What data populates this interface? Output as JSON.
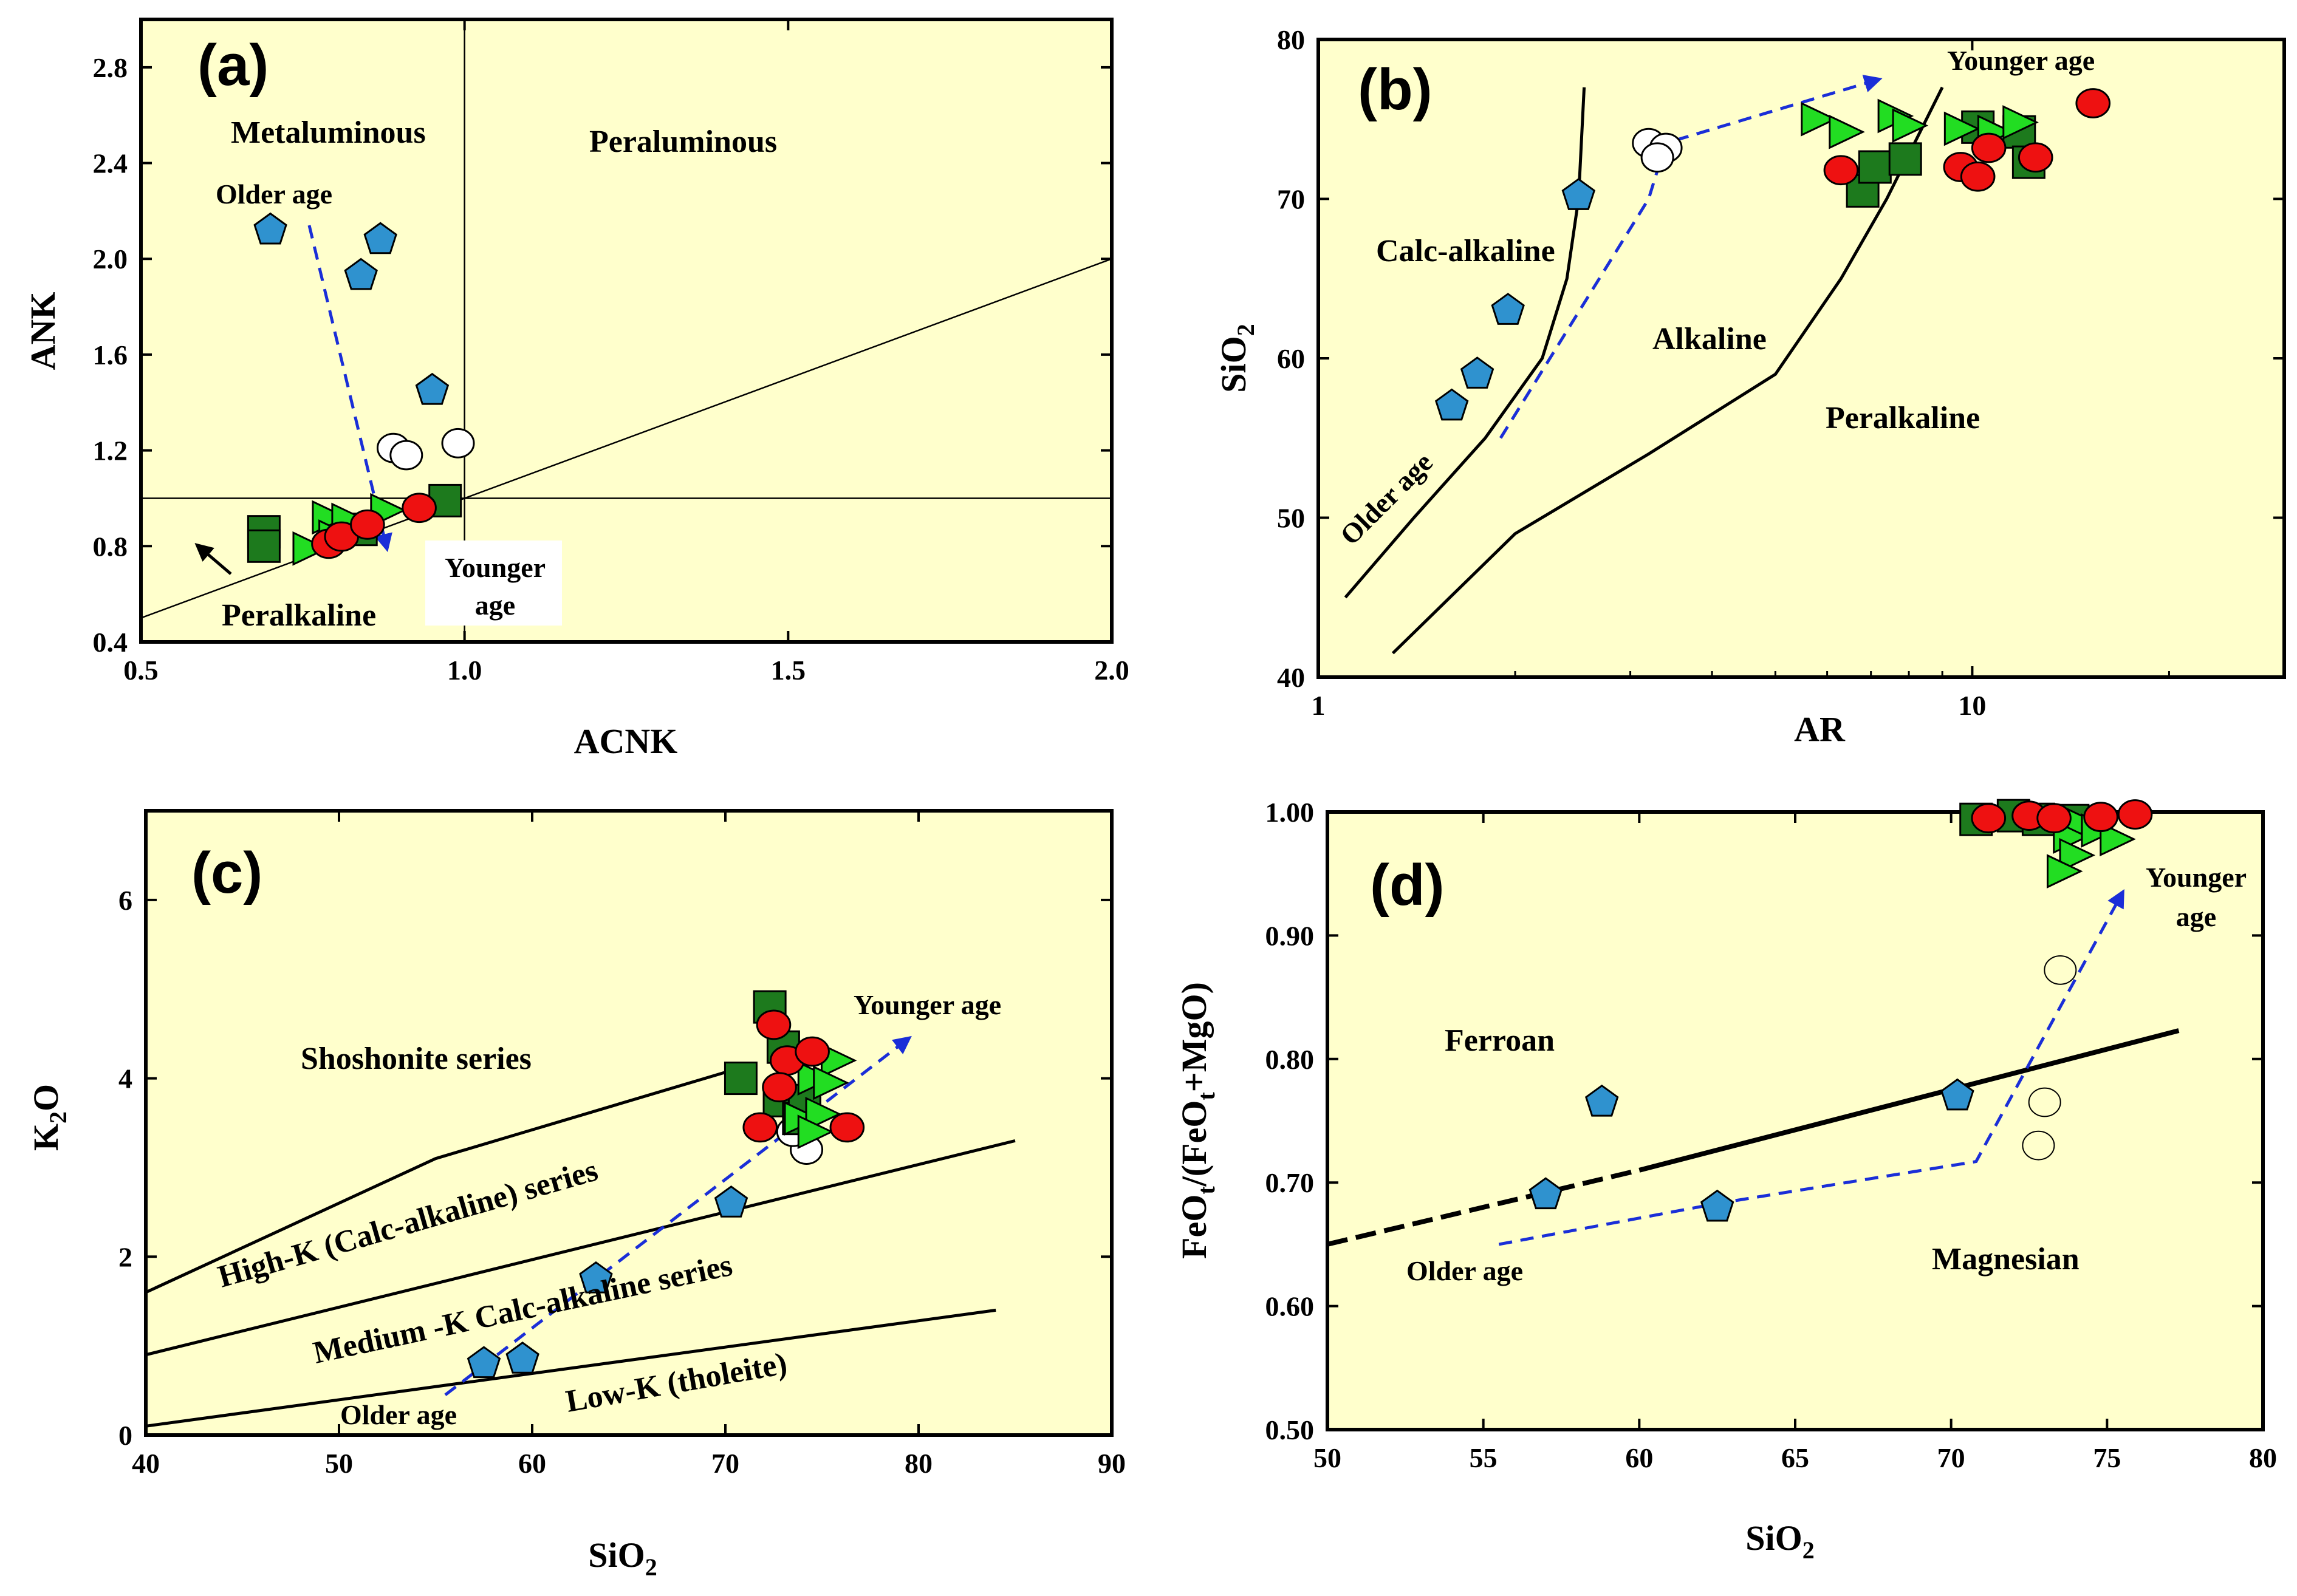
{
  "chart_data": [
    {
      "panel": "(a)",
      "type": "scatter",
      "xlabel": "ACNK",
      "ylabel": "ANK",
      "xlim": [
        0.5,
        2.0
      ],
      "ylim": [
        0.4,
        3.0
      ],
      "xticks": [
        "0.5",
        "1.0",
        "1.5",
        "2.0"
      ],
      "yticks": [
        "0.4",
        "0.8",
        "1.2",
        "1.6",
        "2.0",
        "2.4",
        "2.8"
      ],
      "fields": [
        "Metaluminous",
        "Peraluminous",
        "Peralkaline"
      ],
      "boundaries": [
        {
          "name": "ACNK=1",
          "x": [
            1.0,
            1.0
          ],
          "y": [
            0.4,
            3.0
          ]
        },
        {
          "name": "ANK=1",
          "x": [
            0.5,
            2.0
          ],
          "y": [
            1.0,
            1.0
          ]
        },
        {
          "name": "ACNK=ANK",
          "x": [
            0.5,
            2.0
          ],
          "y": [
            0.5,
            2.0
          ]
        }
      ],
      "annotations": [
        {
          "text": "Older age",
          "x": 0.73,
          "y": 2.27
        },
        {
          "text": "Younger",
          "x": 1.05,
          "y": 0.74
        },
        {
          "text": "age",
          "x": 1.05,
          "y": 0.57
        }
      ],
      "trend": {
        "x": [
          0.76,
          0.88
        ],
        "y": [
          2.14,
          0.79
        ]
      },
      "series": [
        {
          "name": "pentagon",
          "x": [
            0.7,
            0.87,
            0.84,
            0.95
          ],
          "y": [
            2.12,
            2.08,
            1.93,
            1.45
          ]
        },
        {
          "name": "open-circle",
          "x": [
            0.89,
            0.91,
            0.99
          ],
          "y": [
            1.21,
            1.18,
            1.23
          ]
        },
        {
          "name": "square",
          "x": [
            0.69,
            0.69,
            0.84,
            0.97
          ],
          "y": [
            0.86,
            0.8,
            0.87,
            0.99
          ]
        },
        {
          "name": "triangle",
          "x": [
            0.76,
            0.79,
            0.82,
            0.8,
            0.88
          ],
          "y": [
            0.79,
            0.92,
            0.91,
            0.84,
            0.95
          ]
        },
        {
          "name": "red-circle",
          "x": [
            0.79,
            0.81,
            0.85,
            0.93
          ],
          "y": [
            0.81,
            0.84,
            0.89,
            0.96
          ]
        }
      ]
    },
    {
      "panel": "(b)",
      "type": "scatter",
      "xscale": "log",
      "xlabel": "AR",
      "ylabel": "SiO2",
      "xlim": [
        1,
        30
      ],
      "ylim": [
        40,
        80
      ],
      "xticks": [
        "1",
        "10"
      ],
      "yticks": [
        "40",
        "50",
        "60",
        "70",
        "80"
      ],
      "fields": [
        "Calc-alkaline",
        "Alkaline",
        "Peralkaline"
      ],
      "boundaries": [
        {
          "name": "calc-alkaline/alkaline",
          "x": [
            1.1,
            1.4,
            1.8,
            2.2,
            2.4,
            2.5,
            2.55
          ],
          "y": [
            45,
            50,
            55,
            60,
            65,
            70,
            77
          ]
        },
        {
          "name": "alkaline/peralkaline",
          "x": [
            1.3,
            2.0,
            3.2,
            5.0,
            6.3,
            7.4,
            9.0
          ],
          "y": [
            41.5,
            49,
            54,
            59,
            65,
            70,
            77
          ]
        }
      ],
      "annotations": [
        {
          "text": "Older age",
          "x": 1.28,
          "y": 52.5
        },
        {
          "text": "Younger age",
          "x": 10.0,
          "y": 78.5
        }
      ],
      "trend": {
        "x": [
          1.9,
          3.2,
          3.4,
          7.2
        ],
        "y": [
          55,
          70,
          73.5,
          77.5
        ]
      },
      "series": [
        {
          "name": "pentagon",
          "x": [
            1.6,
            1.75,
            1.95,
            2.5
          ],
          "y": [
            57,
            59,
            63,
            70.2
          ]
        },
        {
          "name": "open-circle",
          "x": [
            3.2,
            3.4,
            3.3
          ],
          "y": [
            73.5,
            73.2,
            72.6
          ]
        },
        {
          "name": "square",
          "x": [
            6.8,
            7.1,
            7.9,
            10.2,
            11.8,
            12.2
          ],
          "y": [
            70.5,
            72,
            72.5,
            74.5,
            74.2,
            72.3
          ]
        },
        {
          "name": "triangle",
          "x": [
            5.8,
            6.4,
            7.6,
            8.0,
            9.6,
            10.8,
            11.8
          ],
          "y": [
            75,
            74.2,
            75.2,
            74.6,
            74.4,
            74.2,
            74.8
          ]
        },
        {
          "name": "red-circle",
          "x": [
            6.3,
            9.6,
            10.6,
            10.2,
            12.5,
            15.3
          ],
          "y": [
            71.8,
            72,
            73.2,
            71.4,
            72.6,
            76
          ]
        }
      ]
    },
    {
      "panel": "(c)",
      "type": "scatter",
      "xlabel": "SiO2",
      "ylabel": "K2O",
      "xlim": [
        40,
        90
      ],
      "ylim": [
        0,
        7
      ],
      "xticks": [
        "40",
        "50",
        "60",
        "70",
        "80",
        "90"
      ],
      "yticks": [
        "0",
        "2",
        "4",
        "6"
      ],
      "fields": [
        "Shoshonite series",
        "High-K (Calc-alkaline) series",
        "Medium -K Calc-alkaline series",
        "Low-K (tholeite)"
      ],
      "boundaries": [
        {
          "name": "shoshonite/high-K",
          "x": [
            40,
            55,
            70.5
          ],
          "y": [
            1.6,
            3.1,
            4.1
          ]
        },
        {
          "name": "high-K/medium-K",
          "x": [
            40,
            85
          ],
          "y": [
            0.9,
            3.3
          ]
        },
        {
          "name": "medium-K/low-K",
          "x": [
            40,
            84
          ],
          "y": [
            0.1,
            1.4
          ]
        }
      ],
      "annotations": [
        {
          "text": "Older age",
          "x": 55,
          "y": 0.18
        },
        {
          "text": "Younger age",
          "x": 81,
          "y": 4.8
        }
      ],
      "trend": {
        "x": [
          55.5,
          79.5
        ],
        "y": [
          0.45,
          4.45
        ]
      },
      "series": [
        {
          "name": "pentagon",
          "x": [
            57.5,
            59.5,
            63.3,
            70.3
          ],
          "y": [
            0.8,
            0.85,
            1.75,
            2.6
          ]
        },
        {
          "name": "open-circle",
          "x": [
            73.8,
            74.2,
            73.5
          ],
          "y": [
            3.7,
            3.2,
            3.4
          ]
        },
        {
          "name": "square",
          "x": [
            72.3,
            73.0,
            70.8,
            72.8,
            73.8,
            74.1
          ],
          "y": [
            4.8,
            4.35,
            4.0,
            3.75,
            3.55,
            3.75
          ]
        },
        {
          "name": "triangle",
          "x": [
            75.8,
            74.6,
            75.4,
            73.9,
            75.0,
            74.6
          ],
          "y": [
            4.2,
            4.0,
            3.95,
            3.55,
            3.6,
            3.4
          ]
        },
        {
          "name": "red-circle",
          "x": [
            72.5,
            73.2,
            74.5,
            72.8,
            71.8,
            76.3
          ],
          "y": [
            4.6,
            4.2,
            4.3,
            3.9,
            3.45,
            3.45
          ]
        }
      ]
    },
    {
      "panel": "(d)",
      "type": "scatter",
      "xlabel": "SiO2",
      "ylabel": "FeOt/(FeOt+MgO)",
      "xlim": [
        50,
        80
      ],
      "ylim": [
        0.5,
        1.0
      ],
      "xticks": [
        "50",
        "55",
        "60",
        "65",
        "70",
        "75",
        "80"
      ],
      "yticks": [
        "0.50",
        "0.60",
        "0.70",
        "0.80",
        "0.90",
        "1.00"
      ],
      "fields": [
        "Ferroan",
        "Magnesian"
      ],
      "boundaries": [
        {
          "name": "ferroan/magnesian (dashed)",
          "x": [
            50,
            60
          ],
          "y": [
            0.65,
            0.71
          ]
        },
        {
          "name": "ferroan/magnesian (solid)",
          "x": [
            60,
            77.3
          ],
          "y": [
            0.71,
            0.823
          ]
        }
      ],
      "annotations": [
        {
          "text": "Older age",
          "x": 57,
          "y": 0.635
        },
        {
          "text": "Younger",
          "x": 76.8,
          "y": 0.95
        },
        {
          "text": "age",
          "x": 76.8,
          "y": 0.918
        }
      ],
      "trend": {
        "x": [
          55.5,
          62.5,
          70.8,
          75.5
        ],
        "y": [
          0.65,
          0.683,
          0.717,
          0.935
        ]
      },
      "series": [
        {
          "name": "pentagon",
          "x": [
            57,
            58.8,
            62.5,
            70.2
          ],
          "y": [
            0.69,
            0.765,
            0.68,
            0.77
          ]
        },
        {
          "name": "open-circle",
          "x": [
            73.5,
            73.0,
            72.8
          ],
          "y": [
            0.872,
            0.765,
            0.73
          ]
        },
        {
          "name": "square",
          "x": [
            70.8,
            72.0,
            72.8,
            73.9
          ],
          "y": [
            0.994,
            0.997,
            0.994,
            0.993
          ]
        },
        {
          "name": "triangle",
          "x": [
            74.2,
            73.8,
            74.0,
            74.7,
            75.3,
            73.6
          ],
          "y": [
            0.99,
            0.98,
            0.965,
            0.985,
            0.978,
            0.952
          ]
        },
        {
          "name": "red-circle",
          "x": [
            71.2,
            72.5,
            73.3,
            74.8,
            75.9
          ],
          "y": [
            0.995,
            0.997,
            0.995,
            0.996,
            0.998
          ]
        }
      ]
    }
  ],
  "styles": {
    "panel_bg": "#ffffcc",
    "pentagon_fill": "#2f92cf",
    "square_fill": "#1d7a1d",
    "triangle_fill": "#22dd22",
    "red_circle_fill": "#ee1111",
    "open_circle_fill": "#ffffff",
    "trend_color": "#1a2ed8"
  },
  "labels": {
    "a": {
      "panel": "(a)",
      "xlabel": "ACNK",
      "ylabel": "ANK",
      "metaluminous": "Metaluminous",
      "peraluminous": "Peraluminous",
      "peralkaline": "Peralkaline",
      "older": "Older age",
      "younger1": "Younger",
      "younger2": "age"
    },
    "b": {
      "panel": "(b)",
      "xlabel": "AR",
      "ylabel_main": "SiO",
      "ylabel_sub": "2",
      "calc": "Calc-alkaline",
      "alkaline": "Alkaline",
      "peralkaline": "Peralkaline",
      "older": "Older age",
      "younger": "Younger age"
    },
    "c": {
      "panel": "(c)",
      "xlabel_main": "SiO",
      "xlabel_sub": "2",
      "ylabel_main": "K",
      "ylabel_sub": "2",
      "ylabel_tail": "O",
      "shoshonite": "Shoshonite series",
      "highk": "High-K (Calc-alkaline) series",
      "mediumk": "Medium -K Calc-alkaline series",
      "lowk": "Low-K (tholeite)",
      "older": "Older age",
      "younger": "Younger age"
    },
    "d": {
      "panel": "(d)",
      "xlabel_main": "SiO",
      "xlabel_sub": "2",
      "ylabel_p1": "FeO",
      "ylabel_s1": "t",
      "ylabel_p2": "/(FeO",
      "ylabel_s2": "t",
      "ylabel_p3": "+MgO)",
      "ferroan": "Ferroan",
      "magnesian": "Magnesian",
      "older": "Older age",
      "younger1": "Younger",
      "younger2": "age"
    }
  }
}
